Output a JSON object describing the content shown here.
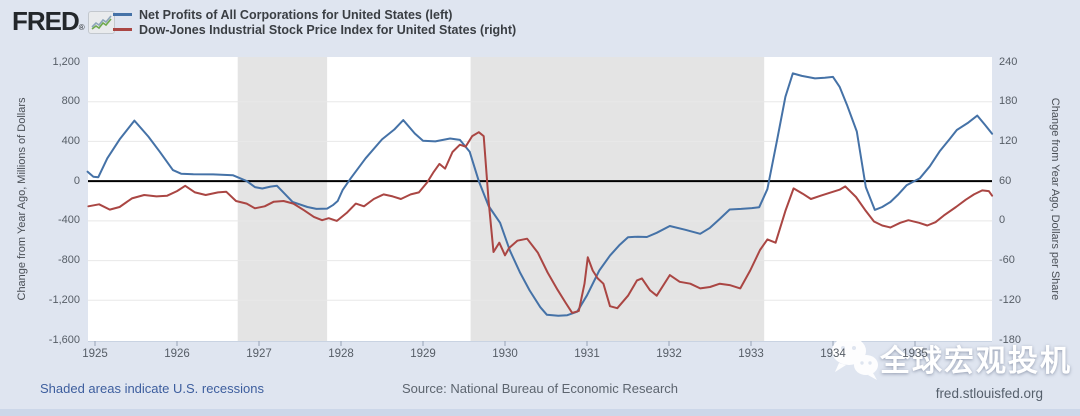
{
  "header": {
    "logo_text": "FRED",
    "logo_registered": "®",
    "legend": [
      {
        "label": "Net Profits of All Corporations for United States (left)",
        "color": "#4572a7"
      },
      {
        "label": "Dow-Jones Industrial Stock Price Index for United States (right)",
        "color": "#aa4643"
      }
    ]
  },
  "chart_data": {
    "type": "line",
    "title": "",
    "grid": true,
    "plot_bg": "#ffffff",
    "recession_band_color": "#e4e4e4",
    "zero_line_color": "#000000",
    "gridline_color": "#e8e8e8",
    "x_axis": {
      "labels": [
        "1925",
        "1926",
        "1927",
        "1928",
        "1929",
        "1930",
        "1931",
        "1932",
        "1933",
        "1934",
        "1935"
      ],
      "years": [
        1925,
        1926,
        1927,
        1928,
        1929,
        1930,
        1931,
        1932,
        1933,
        1934,
        1935
      ],
      "range": [
        1924.91,
        1935.94
      ]
    },
    "left_axis": {
      "title": "Change from Year Ago, Millions of Dollars",
      "ticks": [
        "1,200",
        "800",
        "400",
        "0",
        "-400",
        "-800",
        "-1,200",
        "-1,600"
      ],
      "tick_values": [
        1200,
        800,
        400,
        0,
        -400,
        -800,
        -1200,
        -1600
      ],
      "grid_values": [
        800,
        400,
        -400,
        -800,
        -1200
      ],
      "range": [
        -1600,
        1200
      ]
    },
    "right_axis": {
      "title": "Change from Year Ago, Dollars per Share",
      "ticks": [
        "240",
        "180",
        "120",
        "60",
        "0",
        "-60",
        "-120",
        "-180"
      ],
      "tick_values": [
        240,
        180,
        120,
        60,
        0,
        -60,
        -120,
        -180
      ],
      "range": [
        -180,
        240
      ]
    },
    "recessions": [
      [
        1926.74,
        1927.83
      ],
      [
        1929.58,
        1933.16
      ]
    ],
    "series": [
      {
        "name": "Net Profits of All Corporations for United States",
        "axis": "left",
        "color": "#4572a7",
        "width": 2,
        "points": [
          [
            1924.91,
            95
          ],
          [
            1924.98,
            45
          ],
          [
            1925.04,
            40
          ],
          [
            1925.15,
            230
          ],
          [
            1925.3,
            420
          ],
          [
            1925.48,
            610
          ],
          [
            1925.65,
            450
          ],
          [
            1925.79,
            296
          ],
          [
            1925.95,
            111
          ],
          [
            1926.05,
            75
          ],
          [
            1926.2,
            70
          ],
          [
            1926.44,
            68
          ],
          [
            1926.68,
            60
          ],
          [
            1926.85,
            0
          ],
          [
            1926.95,
            -60
          ],
          [
            1927.04,
            -74
          ],
          [
            1927.14,
            -55
          ],
          [
            1927.22,
            -47
          ],
          [
            1927.41,
            -209
          ],
          [
            1927.59,
            -260
          ],
          [
            1927.7,
            -280
          ],
          [
            1927.83,
            -277
          ],
          [
            1927.9,
            -242
          ],
          [
            1927.96,
            -200
          ],
          [
            1928.02,
            -90
          ],
          [
            1928.12,
            30
          ],
          [
            1928.3,
            230
          ],
          [
            1928.5,
            420
          ],
          [
            1928.65,
            520
          ],
          [
            1928.76,
            615
          ],
          [
            1928.9,
            480
          ],
          [
            1929.0,
            407
          ],
          [
            1929.15,
            400
          ],
          [
            1929.33,
            430
          ],
          [
            1929.45,
            415
          ],
          [
            1929.57,
            296
          ],
          [
            1929.68,
            0
          ],
          [
            1929.8,
            -250
          ],
          [
            1929.94,
            -420
          ],
          [
            1930.06,
            -700
          ],
          [
            1930.18,
            -916
          ],
          [
            1930.3,
            -1100
          ],
          [
            1930.43,
            -1270
          ],
          [
            1930.51,
            -1345
          ],
          [
            1930.65,
            -1355
          ],
          [
            1930.76,
            -1350
          ],
          [
            1930.88,
            -1315
          ],
          [
            1931.0,
            -1150
          ],
          [
            1931.15,
            -900
          ],
          [
            1931.28,
            -750
          ],
          [
            1931.4,
            -640
          ],
          [
            1931.5,
            -565
          ],
          [
            1931.62,
            -560
          ],
          [
            1931.73,
            -563
          ],
          [
            1931.85,
            -520
          ],
          [
            1932.01,
            -452
          ],
          [
            1932.2,
            -490
          ],
          [
            1932.38,
            -530
          ],
          [
            1932.5,
            -470
          ],
          [
            1932.62,
            -380
          ],
          [
            1932.74,
            -286
          ],
          [
            1932.88,
            -280
          ],
          [
            1933.01,
            -272
          ],
          [
            1933.1,
            -262
          ],
          [
            1933.2,
            -80
          ],
          [
            1933.32,
            420
          ],
          [
            1933.42,
            850
          ],
          [
            1933.51,
            1085
          ],
          [
            1933.62,
            1060
          ],
          [
            1933.78,
            1035
          ],
          [
            1933.9,
            1042
          ],
          [
            1934.0,
            1050
          ],
          [
            1934.08,
            950
          ],
          [
            1934.17,
            770
          ],
          [
            1934.29,
            500
          ],
          [
            1934.4,
            -60
          ],
          [
            1934.51,
            -290
          ],
          [
            1934.6,
            -260
          ],
          [
            1934.7,
            -210
          ],
          [
            1934.8,
            -130
          ],
          [
            1934.9,
            -40
          ],
          [
            1935.06,
            30
          ],
          [
            1935.18,
            150
          ],
          [
            1935.3,
            300
          ],
          [
            1935.42,
            420
          ],
          [
            1935.51,
            515
          ],
          [
            1935.65,
            590
          ],
          [
            1935.76,
            660
          ],
          [
            1935.85,
            570
          ],
          [
            1935.94,
            478
          ]
        ]
      },
      {
        "name": "Dow-Jones Industrial Stock Price Index for United States",
        "axis": "right",
        "color": "#aa4643",
        "width": 2,
        "points": [
          [
            1924.92,
            22
          ],
          [
            1925.05,
            25
          ],
          [
            1925.18,
            17
          ],
          [
            1925.3,
            21
          ],
          [
            1925.45,
            34
          ],
          [
            1925.6,
            39
          ],
          [
            1925.75,
            37
          ],
          [
            1925.88,
            38
          ],
          [
            1926.0,
            45
          ],
          [
            1926.1,
            53
          ],
          [
            1926.22,
            43
          ],
          [
            1926.35,
            39
          ],
          [
            1926.5,
            43
          ],
          [
            1926.6,
            44
          ],
          [
            1926.72,
            30
          ],
          [
            1926.85,
            26
          ],
          [
            1926.95,
            19
          ],
          [
            1927.07,
            22
          ],
          [
            1927.18,
            29
          ],
          [
            1927.3,
            30
          ],
          [
            1927.42,
            26
          ],
          [
            1927.55,
            16
          ],
          [
            1927.67,
            6
          ],
          [
            1927.77,
            1
          ],
          [
            1927.85,
            4
          ],
          [
            1927.95,
            0
          ],
          [
            1928.07,
            12
          ],
          [
            1928.18,
            26
          ],
          [
            1928.28,
            22
          ],
          [
            1928.4,
            33
          ],
          [
            1928.52,
            40
          ],
          [
            1928.63,
            37
          ],
          [
            1928.73,
            33
          ],
          [
            1928.85,
            40
          ],
          [
            1928.95,
            43
          ],
          [
            1929.05,
            58
          ],
          [
            1929.13,
            74
          ],
          [
            1929.2,
            86
          ],
          [
            1929.27,
            79
          ],
          [
            1929.36,
            104
          ],
          [
            1929.45,
            115
          ],
          [
            1929.52,
            112
          ],
          [
            1929.6,
            128
          ],
          [
            1929.68,
            134
          ],
          [
            1929.74,
            128
          ],
          [
            1929.8,
            30
          ],
          [
            1929.86,
            -47
          ],
          [
            1929.93,
            -33
          ],
          [
            1930.0,
            -52
          ],
          [
            1930.05,
            -41
          ],
          [
            1930.15,
            -30
          ],
          [
            1930.27,
            -27
          ],
          [
            1930.4,
            -48
          ],
          [
            1930.52,
            -78
          ],
          [
            1930.64,
            -104
          ],
          [
            1930.74,
            -124
          ],
          [
            1930.82,
            -139
          ],
          [
            1930.9,
            -136
          ],
          [
            1930.97,
            -95
          ],
          [
            1931.01,
            -55
          ],
          [
            1931.07,
            -75
          ],
          [
            1931.13,
            -87
          ],
          [
            1931.2,
            -95
          ],
          [
            1931.28,
            -129
          ],
          [
            1931.37,
            -132
          ],
          [
            1931.5,
            -113
          ],
          [
            1931.61,
            -90
          ],
          [
            1931.67,
            -87
          ],
          [
            1931.77,
            -105
          ],
          [
            1931.85,
            -113
          ],
          [
            1932.01,
            -82
          ],
          [
            1932.13,
            -92
          ],
          [
            1932.26,
            -95
          ],
          [
            1932.38,
            -102
          ],
          [
            1932.5,
            -100
          ],
          [
            1932.62,
            -95
          ],
          [
            1932.74,
            -97
          ],
          [
            1932.87,
            -102
          ],
          [
            1932.99,
            -75
          ],
          [
            1933.11,
            -44
          ],
          [
            1933.2,
            -28
          ],
          [
            1933.3,
            -33
          ],
          [
            1933.42,
            15
          ],
          [
            1933.52,
            49
          ],
          [
            1933.63,
            41
          ],
          [
            1933.73,
            33
          ],
          [
            1933.85,
            38
          ],
          [
            1933.95,
            42
          ],
          [
            1934.08,
            47
          ],
          [
            1934.15,
            52
          ],
          [
            1934.28,
            36
          ],
          [
            1934.4,
            15
          ],
          [
            1934.5,
            -1
          ],
          [
            1934.6,
            -7
          ],
          [
            1934.7,
            -10
          ],
          [
            1934.82,
            -3
          ],
          [
            1934.92,
            1
          ],
          [
            1935.05,
            -3
          ],
          [
            1935.15,
            -7
          ],
          [
            1935.25,
            -2
          ],
          [
            1935.35,
            8
          ],
          [
            1935.5,
            21
          ],
          [
            1935.62,
            32
          ],
          [
            1935.72,
            40
          ],
          [
            1935.82,
            46
          ],
          [
            1935.9,
            45
          ],
          [
            1935.94,
            38
          ]
        ]
      }
    ]
  },
  "footer": {
    "recession_note": "Shaded areas indicate U.S. recessions",
    "source": "Source: National Bureau of Economic Research",
    "site": "fred.stlouisfed.org"
  },
  "watermark": {
    "text": "全球宏观投机",
    "icon": "wechat-icon"
  },
  "colors": {
    "background": "#dfe5f0",
    "bottom_bar": "#ccd7e9",
    "blue": "#4572a7",
    "red": "#aa4643"
  }
}
